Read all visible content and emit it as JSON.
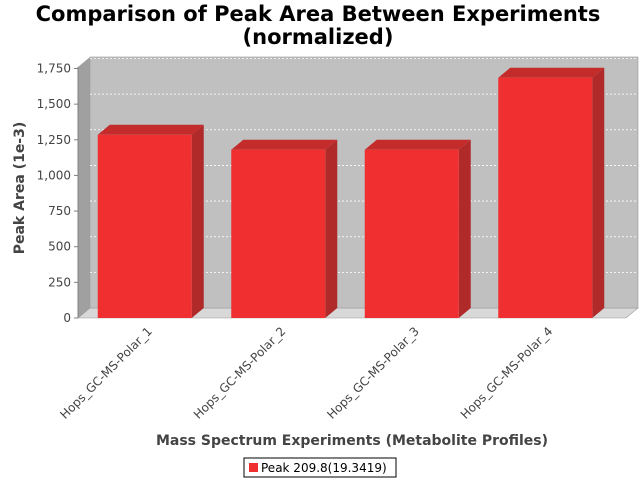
{
  "chart_data": {
    "type": "bar",
    "title": "Comparison of Peak Area Between Experiments",
    "subtitle": "(normalized)",
    "xlabel": "Mass Spectrum Experiments (Metabolite Profiles)",
    "ylabel": "Peak Area (1e-3)",
    "categories": [
      "Hops_GC-MS-Polar_1",
      "Hops_GC-MS-Polar_2",
      "Hops_GC-MS-Polar_3",
      "Hops_GC-MS-Polar_4"
    ],
    "series": [
      {
        "name": "Peak 209.8(19.3419)",
        "values": [
          1285,
          1180,
          1180,
          1685
        ],
        "color": "#f03030"
      }
    ],
    "yticks": [
      0,
      250,
      500,
      750,
      1000,
      1250,
      1500,
      1750
    ],
    "ytick_labels": [
      "0",
      "250",
      "500",
      "750",
      "1,000",
      "1,250",
      "1,500",
      "1,750"
    ],
    "ylim": [
      0,
      1800
    ],
    "grid": true,
    "legend": "bottom-center",
    "style": "3d",
    "colors": {
      "bar_front": "#f03030",
      "bar_side": "#b02a2a",
      "bar_top": "#c42c2c",
      "plot_back": "#c0c0c0",
      "plot_side": "#a0a0a0",
      "plot_floor": "#d8d8d8"
    }
  }
}
